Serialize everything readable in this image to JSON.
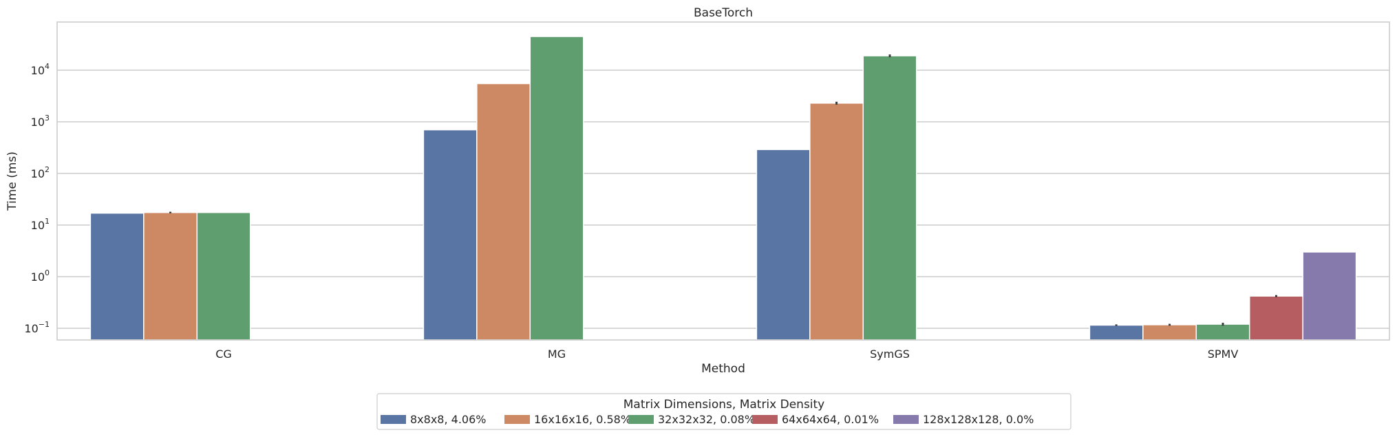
{
  "chart_data": {
    "type": "bar",
    "title": "BaseTorch",
    "xlabel": "Method",
    "ylabel": "Time (ms)",
    "yscale": "log",
    "ylim": [
      0.06,
      100000
    ],
    "grid": true,
    "categories": [
      "CG",
      "MG",
      "SymGS",
      "SPMV"
    ],
    "yticks": [
      0.1,
      1,
      10,
      100,
      1000,
      10000
    ],
    "ytick_labels": [
      {
        "base": "10",
        "exp": "−1"
      },
      {
        "base": "10",
        "exp": "0"
      },
      {
        "base": "10",
        "exp": "1"
      },
      {
        "base": "10",
        "exp": "2"
      },
      {
        "base": "10",
        "exp": "3"
      },
      {
        "base": "10",
        "exp": "4"
      }
    ],
    "legend_title": "Matrix Dimensions, Matrix Density",
    "legend_position": "bottom-center",
    "series": [
      {
        "name": "8x8x8, 4.06%",
        "color": "#5975a4",
        "values": [
          17,
          700,
          290,
          0.115
        ],
        "err": [
          0,
          0,
          0,
          0.004
        ]
      },
      {
        "name": "16x16x16, 0.58%",
        "color": "#cc8963",
        "values": [
          17.5,
          5500,
          2300,
          0.117
        ],
        "err": [
          0.6,
          0,
          150,
          0.005
        ]
      },
      {
        "name": "32x32x32, 0.08%",
        "color": "#5f9e6e",
        "values": [
          17.5,
          45000,
          19000,
          0.12
        ],
        "err": [
          0,
          0,
          1200,
          0.008
        ]
      },
      {
        "name": "64x64x64, 0.01%",
        "color": "#b55d60",
        "values": [
          null,
          null,
          null,
          0.42
        ],
        "err": [
          0,
          0,
          0,
          0.02
        ]
      },
      {
        "name": "128x128x128, 0.0%",
        "color": "#857aab",
        "values": [
          null,
          null,
          null,
          3.0
        ],
        "err": [
          0,
          0,
          0,
          0
        ]
      }
    ]
  }
}
